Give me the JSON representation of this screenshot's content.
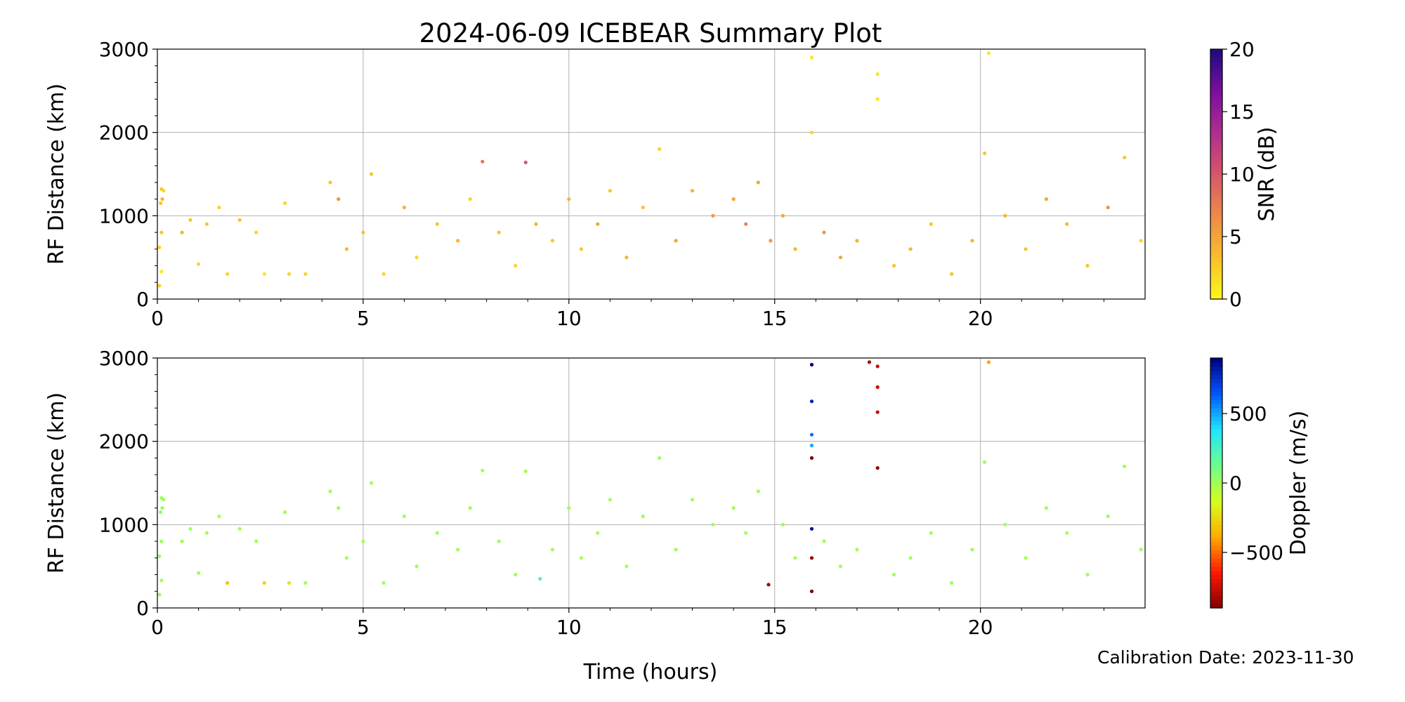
{
  "figure": {
    "title": "2024-06-09 ICEBEAR Summary Plot",
    "calibration_text": "Calibration Date: 2023-11-30"
  },
  "chart_data": [
    {
      "type": "scatter",
      "title": "2024-06-09 ICEBEAR Summary Plot",
      "xlabel": "",
      "ylabel": "RF Distance (km)",
      "xlim": [
        0,
        24
      ],
      "ylim": [
        0,
        3000
      ],
      "xticks": [
        0,
        5,
        10,
        15,
        20
      ],
      "yticks": [
        0,
        1000,
        2000,
        3000
      ],
      "grid": true,
      "color_by": "SNR (dB)",
      "colorbar": {
        "label": "SNR (dB)",
        "range": [
          0,
          20
        ],
        "ticks": [
          0,
          5,
          10,
          15,
          20
        ],
        "colormap": [
          "#fcf81c",
          "#f8bf2b",
          "#ee8a4a",
          "#d7566a",
          "#b02e8c",
          "#7a0ea0",
          "#1b0c7d"
        ]
      },
      "series": [
        {
          "points": [
            [
              0.05,
              160,
              2
            ],
            [
              0.1,
              330,
              1
            ],
            [
              0.05,
              620,
              2
            ],
            [
              0.1,
              800,
              3
            ],
            [
              0.08,
              1150,
              3
            ],
            [
              0.12,
              1200,
              4
            ],
            [
              0.1,
              1320,
              3
            ],
            [
              0.15,
              1300,
              2
            ],
            [
              0.6,
              800,
              4
            ],
            [
              0.8,
              950,
              3
            ],
            [
              1.0,
              420,
              2
            ],
            [
              1.2,
              900,
              3
            ],
            [
              1.5,
              1100,
              2
            ],
            [
              1.7,
              300,
              2
            ],
            [
              2.0,
              950,
              3
            ],
            [
              2.4,
              800,
              2
            ],
            [
              2.6,
              300,
              1
            ],
            [
              3.1,
              1150,
              2
            ],
            [
              3.2,
              300,
              2
            ],
            [
              3.6,
              300,
              2
            ],
            [
              4.2,
              1400,
              3
            ],
            [
              4.4,
              1200,
              6
            ],
            [
              4.6,
              600,
              4
            ],
            [
              5.0,
              800,
              3
            ],
            [
              5.2,
              1500,
              3
            ],
            [
              5.5,
              300,
              2
            ],
            [
              6.0,
              1100,
              4
            ],
            [
              6.3,
              500,
              2
            ],
            [
              6.8,
              900,
              3
            ],
            [
              7.3,
              700,
              4
            ],
            [
              7.6,
              1200,
              2
            ],
            [
              7.9,
              1650,
              8
            ],
            [
              8.3,
              800,
              3
            ],
            [
              8.7,
              400,
              2
            ],
            [
              8.95,
              1640,
              10
            ],
            [
              9.2,
              900,
              4
            ],
            [
              9.6,
              700,
              3
            ],
            [
              10.0,
              1200,
              4
            ],
            [
              10.3,
              600,
              3
            ],
            [
              10.7,
              900,
              5
            ],
            [
              11.0,
              1300,
              3
            ],
            [
              11.4,
              500,
              4
            ],
            [
              11.8,
              1100,
              3
            ],
            [
              12.2,
              1800,
              2
            ],
            [
              12.6,
              700,
              5
            ],
            [
              13.0,
              1300,
              4
            ],
            [
              13.5,
              1000,
              6
            ],
            [
              14.0,
              1200,
              5
            ],
            [
              14.3,
              900,
              7
            ],
            [
              14.6,
              1400,
              5
            ],
            [
              14.9,
              700,
              6
            ],
            [
              15.2,
              1000,
              5
            ],
            [
              15.5,
              600,
              4
            ],
            [
              15.9,
              2900,
              1
            ],
            [
              15.9,
              2000,
              2
            ],
            [
              16.2,
              800,
              6
            ],
            [
              16.6,
              500,
              5
            ],
            [
              17.0,
              700,
              4
            ],
            [
              17.5,
              2400,
              1
            ],
            [
              17.5,
              2700,
              1
            ],
            [
              17.9,
              400,
              3
            ],
            [
              18.3,
              600,
              4
            ],
            [
              18.8,
              900,
              3
            ],
            [
              19.3,
              300,
              3
            ],
            [
              19.8,
              700,
              4
            ],
            [
              20.1,
              1750,
              3
            ],
            [
              20.2,
              2950,
              1
            ],
            [
              20.6,
              1000,
              4
            ],
            [
              21.1,
              600,
              3
            ],
            [
              21.6,
              1200,
              5
            ],
            [
              22.1,
              900,
              4
            ],
            [
              22.6,
              400,
              3
            ],
            [
              23.1,
              1100,
              6
            ],
            [
              23.5,
              1700,
              3
            ],
            [
              23.9,
              700,
              2
            ]
          ]
        }
      ]
    },
    {
      "type": "scatter",
      "xlabel": "Time (hours)",
      "ylabel": "RF Distance (km)",
      "xlim": [
        0,
        24
      ],
      "ylim": [
        0,
        3000
      ],
      "xticks": [
        0,
        5,
        10,
        15,
        20
      ],
      "yticks": [
        0,
        1000,
        2000,
        3000
      ],
      "grid": true,
      "color_by": "Doppler (m/s)",
      "colorbar": {
        "label": "Doppler (m/s)",
        "range": [
          -900,
          900
        ],
        "ticks": [
          -500,
          0,
          500
        ],
        "colormap": [
          "#7f0000",
          "#ff1800",
          "#ffab00",
          "#d5ff22",
          "#6bff8c",
          "#1ee6ff",
          "#0057ff",
          "#00007f"
        ]
      },
      "series": [
        {
          "points": [
            [
              0.05,
              160,
              0
            ],
            [
              0.1,
              330,
              10
            ],
            [
              0.05,
              620,
              0
            ],
            [
              0.1,
              800,
              20
            ],
            [
              0.08,
              1150,
              30
            ],
            [
              0.12,
              1200,
              40
            ],
            [
              0.1,
              1320,
              20
            ],
            [
              0.15,
              1300,
              0
            ],
            [
              0.6,
              800,
              0
            ],
            [
              0.8,
              950,
              0
            ],
            [
              1.0,
              420,
              10
            ],
            [
              1.2,
              900,
              0
            ],
            [
              1.5,
              1100,
              -20
            ],
            [
              1.7,
              300,
              -300
            ],
            [
              2.0,
              950,
              0
            ],
            [
              2.4,
              800,
              0
            ],
            [
              2.6,
              300,
              -250
            ],
            [
              3.1,
              1150,
              0
            ],
            [
              3.2,
              300,
              -200
            ],
            [
              3.6,
              300,
              0
            ],
            [
              4.2,
              1400,
              0
            ],
            [
              4.4,
              1200,
              10
            ],
            [
              4.6,
              600,
              0
            ],
            [
              5.0,
              800,
              0
            ],
            [
              5.2,
              1500,
              0
            ],
            [
              5.5,
              300,
              0
            ],
            [
              6.0,
              1100,
              0
            ],
            [
              6.3,
              500,
              0
            ],
            [
              6.8,
              900,
              10
            ],
            [
              7.3,
              700,
              0
            ],
            [
              7.6,
              1200,
              0
            ],
            [
              7.9,
              1650,
              0
            ],
            [
              8.3,
              800,
              0
            ],
            [
              8.7,
              400,
              0
            ],
            [
              8.95,
              1640,
              0
            ],
            [
              9.3,
              350,
              250
            ],
            [
              9.6,
              700,
              0
            ],
            [
              10.0,
              1200,
              0
            ],
            [
              10.3,
              600,
              0
            ],
            [
              10.7,
              900,
              0
            ],
            [
              11.0,
              1300,
              0
            ],
            [
              11.4,
              500,
              0
            ],
            [
              11.8,
              1100,
              0
            ],
            [
              12.2,
              1800,
              0
            ],
            [
              12.6,
              700,
              0
            ],
            [
              13.0,
              1300,
              0
            ],
            [
              13.5,
              1000,
              0
            ],
            [
              14.0,
              1200,
              0
            ],
            [
              14.3,
              900,
              0
            ],
            [
              14.6,
              1400,
              0
            ],
            [
              14.85,
              280,
              -850
            ],
            [
              15.2,
              1000,
              0
            ],
            [
              15.5,
              600,
              0
            ],
            [
              15.9,
              2920,
              900
            ],
            [
              15.9,
              2480,
              800
            ],
            [
              15.9,
              2080,
              600
            ],
            [
              15.9,
              1950,
              500
            ],
            [
              15.9,
              1800,
              -900
            ],
            [
              15.9,
              950,
              850
            ],
            [
              15.9,
              600,
              -850
            ],
            [
              15.9,
              200,
              -900
            ],
            [
              16.2,
              800,
              0
            ],
            [
              16.6,
              500,
              0
            ],
            [
              17.0,
              700,
              0
            ],
            [
              17.3,
              2950,
              -800
            ],
            [
              17.5,
              2350,
              -750
            ],
            [
              17.5,
              2650,
              -750
            ],
            [
              17.5,
              2900,
              -750
            ],
            [
              17.5,
              1680,
              -850
            ],
            [
              17.9,
              400,
              0
            ],
            [
              18.3,
              600,
              0
            ],
            [
              18.8,
              900,
              0
            ],
            [
              19.3,
              300,
              0
            ],
            [
              19.8,
              700,
              0
            ],
            [
              20.1,
              1750,
              0
            ],
            [
              20.2,
              2950,
              -400
            ],
            [
              20.6,
              1000,
              0
            ],
            [
              21.1,
              600,
              0
            ],
            [
              21.6,
              1200,
              0
            ],
            [
              22.1,
              900,
              0
            ],
            [
              22.6,
              400,
              0
            ],
            [
              23.1,
              1100,
              0
            ],
            [
              23.5,
              1700,
              0
            ],
            [
              23.9,
              700,
              0
            ]
          ]
        }
      ]
    }
  ]
}
